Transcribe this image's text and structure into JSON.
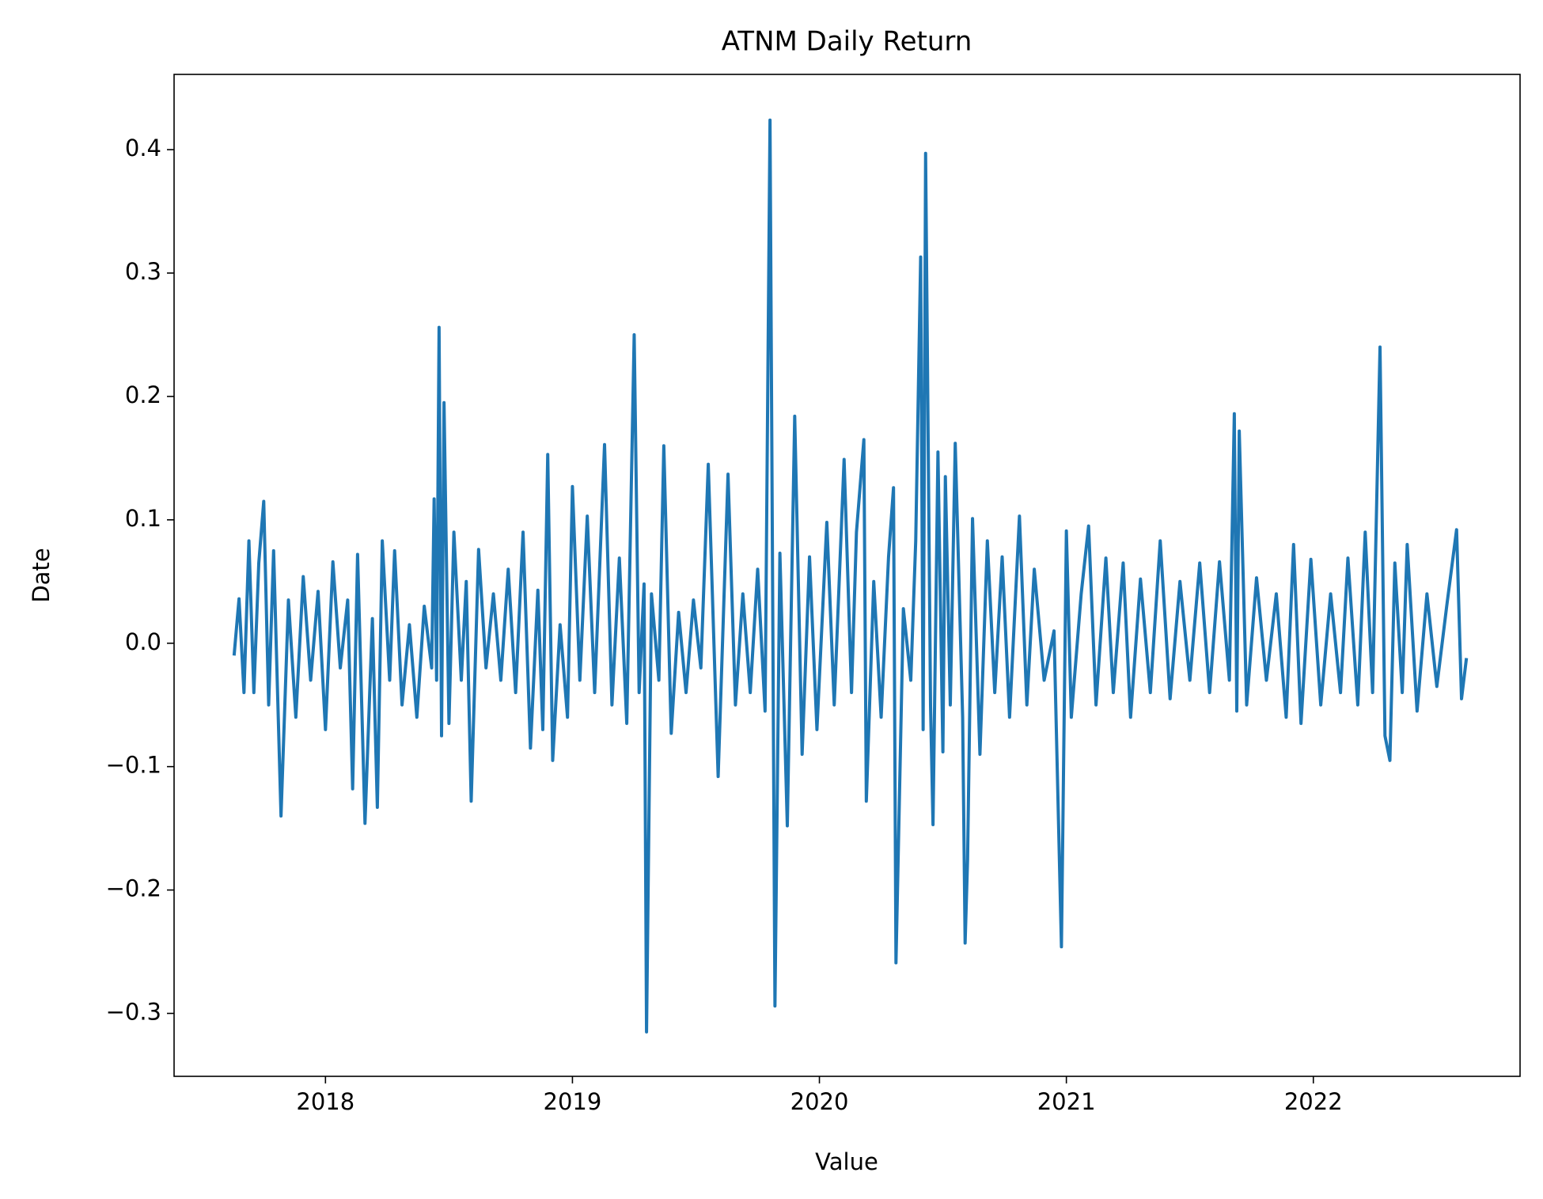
{
  "chart_data": {
    "type": "line",
    "title": "ATNM Daily Return",
    "x_label": "Value",
    "y_label": "Date",
    "x": [
      2017.63,
      2017.65,
      2017.67,
      2017.69,
      2017.71,
      2017.73,
      2017.75,
      2017.77,
      2017.79,
      2017.82,
      2017.85,
      2017.88,
      2017.91,
      2017.94,
      2017.97,
      2018.0,
      2018.03,
      2018.06,
      2018.09,
      2018.11,
      2018.13,
      2018.16,
      2018.19,
      2018.21,
      2018.23,
      2018.26,
      2018.28,
      2018.31,
      2018.34,
      2018.37,
      2018.4,
      2018.43,
      2018.44,
      2018.45,
      2018.46,
      2018.47,
      2018.48,
      2018.5,
      2018.52,
      2018.55,
      2018.57,
      2018.59,
      2018.62,
      2018.65,
      2018.68,
      2018.71,
      2018.74,
      2018.77,
      2018.8,
      2018.83,
      2018.86,
      2018.88,
      2018.9,
      2018.92,
      2018.95,
      2018.98,
      2019.0,
      2019.03,
      2019.06,
      2019.09,
      2019.13,
      2019.16,
      2019.19,
      2019.22,
      2019.25,
      2019.27,
      2019.29,
      2019.3,
      2019.32,
      2019.35,
      2019.37,
      2019.4,
      2019.43,
      2019.46,
      2019.49,
      2019.52,
      2019.55,
      2019.59,
      2019.63,
      2019.66,
      2019.69,
      2019.72,
      2019.75,
      2019.78,
      2019.8,
      2019.82,
      2019.84,
      2019.87,
      2019.9,
      2019.93,
      2019.96,
      2019.99,
      2020.03,
      2020.06,
      2020.1,
      2020.13,
      2020.15,
      2020.18,
      2020.19,
      2020.22,
      2020.25,
      2020.28,
      2020.3,
      2020.31,
      2020.34,
      2020.37,
      2020.39,
      2020.41,
      2020.42,
      2020.43,
      2020.45,
      2020.46,
      2020.48,
      2020.5,
      2020.51,
      2020.53,
      2020.55,
      2020.58,
      2020.59,
      2020.6,
      2020.62,
      2020.65,
      2020.68,
      2020.71,
      2020.74,
      2020.77,
      2020.81,
      2020.84,
      2020.87,
      2020.91,
      2020.95,
      2020.98,
      2021.0,
      2021.02,
      2021.06,
      2021.09,
      2021.12,
      2021.16,
      2021.19,
      2021.23,
      2021.26,
      2021.3,
      2021.34,
      2021.38,
      2021.42,
      2021.46,
      2021.5,
      2021.54,
      2021.58,
      2021.62,
      2021.66,
      2021.68,
      2021.69,
      2021.7,
      2021.73,
      2021.77,
      2021.81,
      2021.85,
      2021.89,
      2021.92,
      2021.95,
      2021.99,
      2022.03,
      2022.07,
      2022.11,
      2022.14,
      2022.18,
      2022.21,
      2022.24,
      2022.27,
      2022.29,
      2022.31,
      2022.33,
      2022.36,
      2022.38,
      2022.42,
      2022.46,
      2022.5,
      2022.54,
      2022.58,
      2022.6,
      2022.62
    ],
    "series": [
      {
        "name": "ATNM",
        "color": "#1f77b4",
        "values": [
          -0.01,
          0.036,
          -0.04,
          0.083,
          -0.04,
          0.065,
          0.115,
          -0.05,
          0.075,
          -0.14,
          0.035,
          -0.06,
          0.054,
          -0.03,
          0.042,
          -0.07,
          0.066,
          -0.02,
          0.035,
          -0.118,
          0.072,
          -0.146,
          0.02,
          -0.133,
          0.083,
          -0.03,
          0.075,
          -0.05,
          0.015,
          -0.06,
          0.03,
          -0.02,
          0.117,
          -0.03,
          0.256,
          -0.075,
          0.195,
          -0.065,
          0.09,
          -0.03,
          0.05,
          -0.128,
          0.076,
          -0.02,
          0.04,
          -0.03,
          0.06,
          -0.04,
          0.09,
          -0.085,
          0.043,
          -0.07,
          0.153,
          -0.095,
          0.015,
          -0.06,
          0.127,
          -0.03,
          0.103,
          -0.04,
          0.161,
          -0.05,
          0.069,
          -0.065,
          0.25,
          -0.04,
          0.048,
          -0.315,
          0.04,
          -0.03,
          0.16,
          -0.073,
          0.025,
          -0.04,
          0.035,
          -0.02,
          0.145,
          -0.108,
          0.137,
          -0.05,
          0.04,
          -0.04,
          0.06,
          -0.055,
          0.424,
          -0.294,
          0.073,
          -0.148,
          0.184,
          -0.09,
          0.07,
          -0.07,
          0.098,
          -0.05,
          0.149,
          -0.04,
          0.09,
          0.165,
          -0.128,
          0.05,
          -0.06,
          0.07,
          0.126,
          -0.259,
          0.028,
          -0.03,
          0.083,
          0.313,
          -0.07,
          0.397,
          -0.05,
          -0.147,
          0.155,
          -0.088,
          0.135,
          -0.05,
          0.162,
          -0.06,
          -0.243,
          -0.175,
          0.101,
          -0.09,
          0.083,
          -0.04,
          0.07,
          -0.06,
          0.103,
          -0.05,
          0.06,
          -0.03,
          0.01,
          -0.246,
          0.091,
          -0.06,
          0.04,
          0.095,
          -0.05,
          0.069,
          -0.04,
          0.065,
          -0.06,
          0.052,
          -0.04,
          0.083,
          -0.045,
          0.05,
          -0.03,
          0.065,
          -0.04,
          0.066,
          -0.03,
          0.186,
          -0.055,
          0.172,
          -0.05,
          0.053,
          -0.03,
          0.04,
          -0.06,
          0.08,
          -0.065,
          0.068,
          -0.05,
          0.04,
          -0.04,
          0.069,
          -0.05,
          0.09,
          -0.04,
          0.24,
          -0.075,
          -0.095,
          0.065,
          -0.04,
          0.08,
          -0.055,
          0.04,
          -0.035,
          0.03,
          0.092,
          -0.045,
          -0.012
        ]
      }
    ],
    "xlim": [
      2017.387,
      2022.837
    ],
    "xticks": [
      2018,
      2019,
      2020,
      2021,
      2022
    ],
    "ylim": [
      -0.351,
      0.461
    ],
    "yticks": [
      {
        "value": -0.3,
        "label": "−0.3"
      },
      {
        "value": -0.2,
        "label": "−0.2"
      },
      {
        "value": -0.1,
        "label": "−0.1"
      },
      {
        "value": 0,
        "label": "0.0"
      },
      0.1,
      0.2,
      0.3,
      0.4
    ],
    "grid": false
  }
}
